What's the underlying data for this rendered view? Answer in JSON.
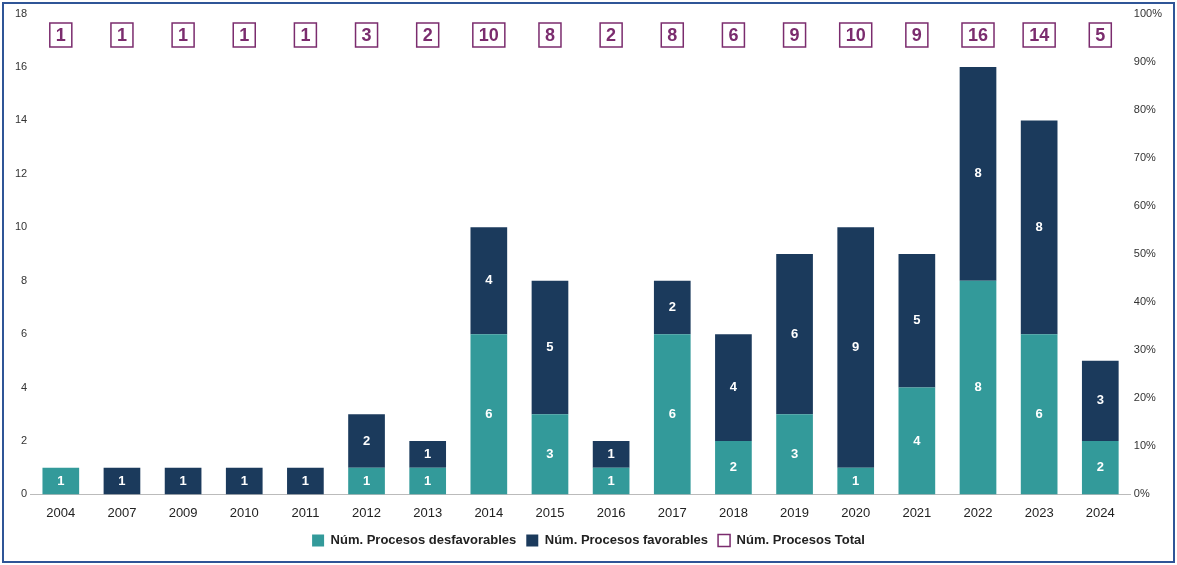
{
  "chart_data": {
    "type": "bar",
    "stacked": true,
    "categories": [
      "2004",
      "2007",
      "2009",
      "2010",
      "2011",
      "2012",
      "2013",
      "2014",
      "2015",
      "2016",
      "2017",
      "2018",
      "2019",
      "2020",
      "2021",
      "2022",
      "2023",
      "2024"
    ],
    "series": [
      {
        "name": "Núm. Procesos desfavorables",
        "color": "#339a9a",
        "values": [
          1,
          0,
          0,
          0,
          0,
          1,
          1,
          6,
          3,
          1,
          6,
          2,
          3,
          1,
          4,
          8,
          6,
          2
        ],
        "value_labels": [
          "1",
          null,
          null,
          null,
          null,
          "1",
          "1",
          "6",
          "3",
          "1",
          "6",
          "2",
          "3",
          "1",
          "4",
          "8",
          "6",
          "2"
        ]
      },
      {
        "name": "Núm. Procesos favorables",
        "color": "#1b3a5c",
        "values": [
          0,
          1,
          1,
          1,
          1,
          2,
          1,
          4,
          5,
          1,
          2,
          4,
          6,
          9,
          5,
          8,
          8,
          3
        ],
        "value_labels": [
          null,
          "1",
          "1",
          "1",
          "1",
          "2",
          "1",
          "4",
          "5",
          "1",
          "2",
          "4",
          "6",
          "9",
          "5",
          "8",
          "8",
          "3"
        ]
      },
      {
        "name": "Núm. Procesos Total",
        "color": "#7b2c6e",
        "values": [
          null,
          null,
          null,
          null,
          null,
          null,
          null,
          null,
          null,
          null,
          null,
          null,
          null,
          null,
          null,
          null,
          null,
          null
        ]
      }
    ],
    "annotations": [
      {
        "text": "1",
        "x": "2004",
        "y": 17.2
      },
      {
        "text": "1",
        "x": "2007",
        "y": 17.2
      },
      {
        "text": "1",
        "x": "2009",
        "y": 17.2
      },
      {
        "text": "1",
        "x": "2010",
        "y": 17.2
      },
      {
        "text": "1",
        "x": "2011",
        "y": 17.2
      },
      {
        "text": "3",
        "x": "2012",
        "y": 17.2
      },
      {
        "text": "2",
        "x": "2013",
        "y": 17.2
      },
      {
        "text": "10",
        "x": "2014",
        "y": 17.2
      },
      {
        "text": "8",
        "x": "2015",
        "y": 17.2
      },
      {
        "text": "2",
        "x": "2016",
        "y": 17.2
      },
      {
        "text": "8",
        "x": "2017",
        "y": 17.2
      },
      {
        "text": "6",
        "x": "2018",
        "y": 17.2
      },
      {
        "text": "9",
        "x": "2019",
        "y": 17.2
      },
      {
        "text": "10",
        "x": "2020",
        "y": 17.2
      },
      {
        "text": "9",
        "x": "2021",
        "y": 17.2
      },
      {
        "text": "16",
        "x": "2022",
        "y": 17.2
      },
      {
        "text": "14",
        "x": "2023",
        "y": 17.2
      },
      {
        "text": "5",
        "x": "2024",
        "y": 17.2
      }
    ],
    "ylim": [
      0,
      18
    ],
    "yticks": [
      0,
      2,
      4,
      6,
      8,
      10,
      12,
      14,
      16,
      18
    ],
    "y2lim": [
      0,
      100
    ],
    "y2ticks": [
      {
        "value": 0,
        "label": "0%"
      },
      {
        "value": 10,
        "label": "10%"
      },
      {
        "value": 20,
        "label": "20%"
      },
      {
        "value": 30,
        "label": "30%"
      },
      {
        "value": 40,
        "label": "40%"
      },
      {
        "value": 50,
        "label": "50%"
      },
      {
        "value": 60,
        "label": "60%"
      },
      {
        "value": 70,
        "label": "70%"
      },
      {
        "value": 80,
        "label": "80%"
      },
      {
        "value": 90,
        "label": "90%"
      },
      {
        "value": 100,
        "label": "100%"
      }
    ],
    "grid": false,
    "legend": "bottom"
  }
}
